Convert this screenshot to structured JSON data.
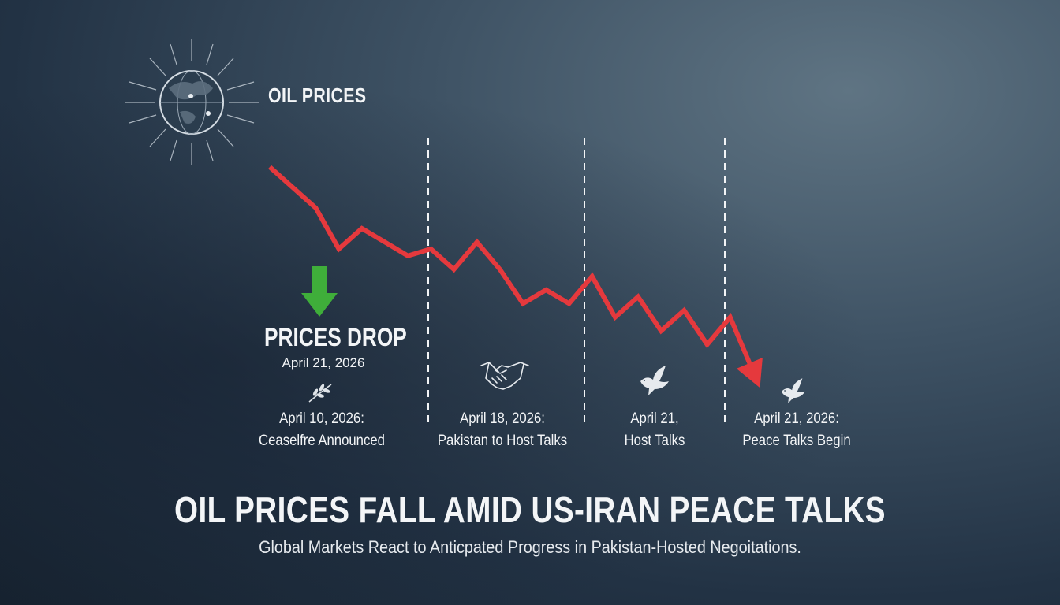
{
  "brand": {
    "title": "OIL PRICES",
    "icon": "globe-icon"
  },
  "headline": {
    "title": "OIL PRICES FALL AMID US-IRAN PEACE TALKS",
    "subtitle": "Global Markets React to Anticpated Progress in Pakistan-Hosted Negoitations."
  },
  "callout": {
    "title": "PRICES DROP",
    "date": "April 21, 2026",
    "icon": "down-arrow-icon",
    "accent": "#3fae3a"
  },
  "events": [
    {
      "line1": "April 10, 2026:",
      "line2": "Ceaselfre Announced",
      "icon": "olive-branch-icon"
    },
    {
      "line1": "April 18, 2026:",
      "line2": "Pakistan to Host Talks",
      "icon": "handshake-icon"
    },
    {
      "line1": "April 21,",
      "line2": "Host Talks",
      "icon": "dove-icon"
    },
    {
      "line1": "April 21, 2026:",
      "line2": "Peace Talks Begin",
      "icon": "dove-icon"
    }
  ],
  "chart_data": {
    "type": "line",
    "trend": "falling",
    "color": "#e5393d",
    "dividers": 3,
    "grid": false,
    "axes": "none",
    "values": [
      100,
      97,
      94,
      88,
      91,
      89,
      87,
      88,
      85,
      89,
      85,
      80,
      82,
      80,
      84,
      78,
      81,
      76,
      79,
      74,
      78,
      70
    ]
  }
}
